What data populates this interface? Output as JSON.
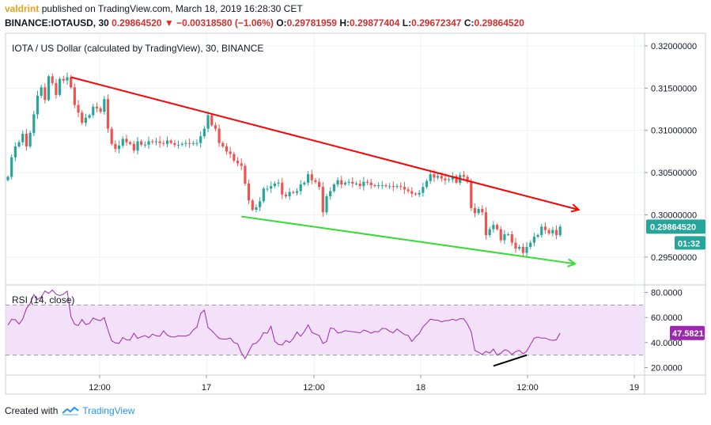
{
  "header": {
    "line1": {
      "user": "valdrint",
      "text": "published on TradingView.com, March 18, 2019 16:28:30 CET"
    },
    "line2": {
      "symbol": "BINANCE:IOTAUSD, 30",
      "last": "0.29864520",
      "change": "▼ −0.00318580 (−1.06%)",
      "o_label": "O:",
      "o": "0.29781959",
      "h_label": "H:",
      "h": "0.29877404",
      "l_label": "L:",
      "l": "0.29672347",
      "c_label": "C:",
      "c": "0.29864520"
    }
  },
  "footer": {
    "created_with": "Created with",
    "brand": "TradingView"
  },
  "colors": {
    "up": "#26a69a",
    "down": "#ef5350",
    "resistance": "#ff0000",
    "support": "#33dd33",
    "rsi_line": "#9c27b0",
    "rsi_band": "#f3e1fa",
    "divergence": "#000000",
    "price_tag": "#26a69a",
    "rsi_tag": "#9c27b0"
  },
  "chart_data": [
    {
      "type": "candlestick",
      "title": "IOTA / US Dollar (calculated by TradingView), 30, BINANCE",
      "x_tick_labels": [
        "12:00",
        "17",
        "12:00",
        "18",
        "12:00",
        "19"
      ],
      "y_tick_labels": [
        "0.32000000",
        "0.31500000",
        "0.31000000",
        "0.30500000",
        "0.30000000",
        "0.29500000"
      ],
      "ylim": [
        0.2917,
        0.3215
      ],
      "last_price_label": "0.29864520",
      "countdown_label": "01:32",
      "closes": [
        0.3045,
        0.3068,
        0.3081,
        0.3086,
        0.3096,
        0.3081,
        0.3097,
        0.3119,
        0.3141,
        0.3151,
        0.3136,
        0.3164,
        0.3156,
        0.3142,
        0.3161,
        0.3159,
        0.3163,
        0.3151,
        0.313,
        0.3121,
        0.3109,
        0.3115,
        0.3118,
        0.3128,
        0.3126,
        0.3122,
        0.3137,
        0.3102,
        0.3084,
        0.3078,
        0.3082,
        0.309,
        0.3086,
        0.3084,
        0.3076,
        0.3087,
        0.3083,
        0.3083,
        0.3087,
        0.3086,
        0.3087,
        0.3085,
        0.3084,
        0.3088,
        0.3085,
        0.3083,
        0.3083,
        0.3084,
        0.3085,
        0.3084,
        0.3085,
        0.3085,
        0.3093,
        0.3102,
        0.3118,
        0.3106,
        0.3102,
        0.3085,
        0.3081,
        0.3075,
        0.3072,
        0.3064,
        0.3061,
        0.3058,
        0.3037,
        0.3017,
        0.3006,
        0.3009,
        0.3016,
        0.3031,
        0.3031,
        0.3034,
        0.3037,
        0.3038,
        0.3024,
        0.3022,
        0.3027,
        0.3026,
        0.3028,
        0.3036,
        0.3038,
        0.3048,
        0.3041,
        0.3039,
        0.3033,
        0.3003,
        0.3022,
        0.3028,
        0.3036,
        0.3041,
        0.3036,
        0.3038,
        0.3039,
        0.3037,
        0.3037,
        0.3034,
        0.3039,
        0.3038,
        0.3035,
        0.3034,
        0.3035,
        0.3035,
        0.3034,
        0.3034,
        0.3033,
        0.3034,
        0.3033,
        0.303,
        0.3028,
        0.3025,
        0.3024,
        0.3026,
        0.3033,
        0.304,
        0.3048,
        0.3044,
        0.3046,
        0.3043,
        0.3041,
        0.3042,
        0.3046,
        0.3038,
        0.3047,
        0.3045,
        0.3039,
        0.3008,
        0.3002,
        0.3007,
        0.3003,
        0.2976,
        0.2983,
        0.2988,
        0.2983,
        0.297,
        0.2977,
        0.2977,
        0.2967,
        0.296,
        0.2962,
        0.2955,
        0.2962,
        0.2967,
        0.2974,
        0.2976,
        0.2986,
        0.2982,
        0.2978,
        0.2982,
        0.2976,
        0.2986
      ],
      "trendlines": [
        {
          "name": "resistance",
          "from": [
            0.3163,
            17
          ],
          "to": [
            0.3006,
            154
          ],
          "arrow": true
        },
        {
          "name": "support",
          "from": [
            0.2998,
            63
          ],
          "to": [
            0.2942,
            153
          ],
          "arrow": true
        }
      ]
    },
    {
      "type": "line",
      "title": "RSI (14, close)",
      "y_tick_labels": [
        "80.0000",
        "60.0000",
        "40.0000",
        "20.0000"
      ],
      "ylim": [
        14,
        86
      ],
      "bands": [
        70,
        30
      ],
      "last_value_label": "47.5821",
      "values": [
        53.9,
        58.5,
        58.2,
        54.8,
        58.7,
        67.1,
        71.2,
        78.3,
        74.4,
        76.4,
        81.2,
        79.2,
        82.0,
        78.6,
        77.5,
        78.6,
        81.1,
        60.8,
        54.6,
        53.6,
        58.4,
        54.4,
        55.3,
        59.6,
        58.2,
        57.5,
        59.9,
        50.0,
        41.4,
        39.7,
        39.4,
        44.0,
        42.2,
        42.1,
        47.5,
        43.3,
        44.6,
        45.6,
        43.9,
        46.7,
        45.4,
        45.0,
        49.3,
        45.9,
        44.6,
        44.5,
        45.4,
        45.2,
        45.2,
        46.2,
        50.0,
        52.4,
        63.2,
        65.9,
        52.1,
        49.4,
        46.4,
        43.3,
        42.8,
        42.8,
        43.6,
        40.1,
        39.1,
        31.8,
        27.2,
        32.9,
        38.7,
        39.5,
        42.6,
        47.9,
        47.5,
        53.0,
        41.0,
        38.6,
        38.0,
        41.6,
        40.1,
        43.2,
        48.4,
        45.0,
        48.8,
        54.2,
        48.1,
        46.8,
        45.6,
        39.3,
        40.9,
        51.6,
        51.1,
        47.6,
        48.1,
        49.5,
        49.0,
        48.7,
        48.3,
        47.7,
        50.0,
        49.0,
        47.4,
        48.8,
        48.6,
        51.3,
        51.1,
        48.9,
        47.8,
        50.8,
        48.5,
        46.4,
        45.7,
        40.9,
        44.5,
        47.2,
        52.5,
        55.5,
        58.7,
        58.1,
        57.8,
        56.5,
        57.4,
        57.6,
        58.6,
        57.7,
        59.1,
        58.9,
        54.7,
        48.7,
        33.7,
        32.2,
        30.5,
        33.1,
        31.6,
        34.8,
        30.0,
        31.5,
        34.2,
        33.4,
        30.4,
        32.8,
        33.7,
        31.0,
        33.1,
        38.4,
        43.5,
        44.4,
        43.5,
        43.6,
        42.3,
        41.7,
        42.2,
        47.6
      ],
      "divergence": {
        "from": [
          21.3,
          131
        ],
        "to": [
          30.0,
          140
        ]
      }
    }
  ]
}
